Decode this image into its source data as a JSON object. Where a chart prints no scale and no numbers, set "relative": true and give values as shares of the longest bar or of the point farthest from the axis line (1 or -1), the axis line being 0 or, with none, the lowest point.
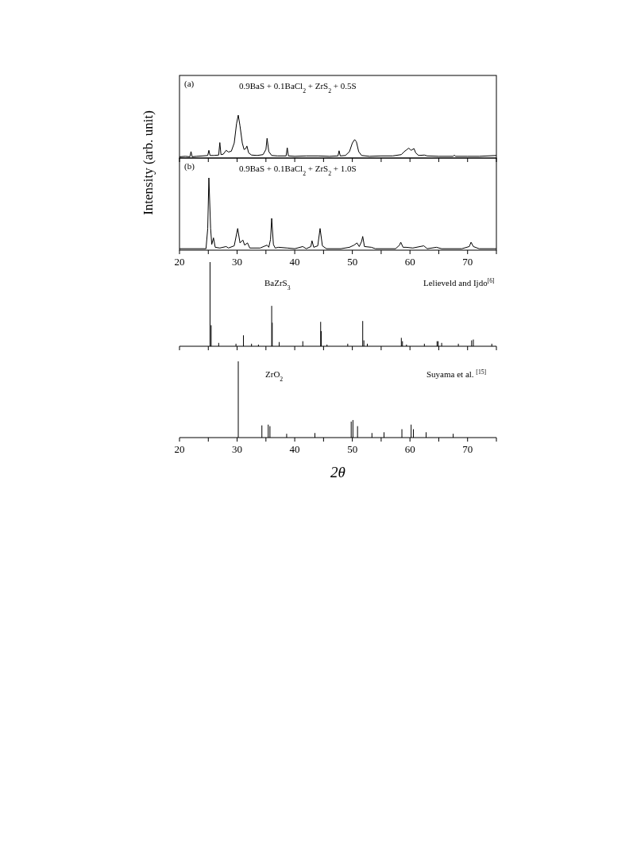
{
  "chart_data": [
    {
      "type": "line",
      "relative": true,
      "color": "#000000",
      "tick_labels": false,
      "ylabel": "Intensity (arb. unit)",
      "annotations": [
        "(a)",
        "0.9BaS + 0.1BaCl$_{2}$ + ZrS$_{2}$ + 0.5S"
      ],
      "xlim": [
        20,
        75
      ],
      "xticks": [
        {
          "value": 20,
          "label": null
        },
        {
          "value": 25,
          "label": null
        },
        {
          "value": 30,
          "label": null
        },
        {
          "value": 35,
          "label": null
        },
        {
          "value": 40,
          "label": null
        },
        {
          "value": 45,
          "label": null
        },
        {
          "value": 50,
          "label": null
        },
        {
          "value": 55,
          "label": null
        },
        {
          "value": 60,
          "label": null
        },
        {
          "value": 65,
          "label": null
        },
        {
          "value": 70,
          "label": null
        },
        {
          "value": 75,
          "label": null
        }
      ],
      "x": [
        20,
        21,
        21.8,
        22.0,
        22.2,
        23,
        24,
        24.9,
        25.1,
        25.3,
        26,
        26.8,
        27.0,
        27.2,
        27.6,
        28.1,
        28.5,
        29.0,
        29.5,
        29.9,
        30.2,
        30.5,
        30.9,
        31.2,
        31.5,
        31.7,
        32.0,
        32.5,
        33.5,
        34.5,
        35.0,
        35.2,
        35.5,
        36,
        37,
        38.5,
        38.7,
        38.9,
        40,
        42,
        44,
        46,
        47.5,
        47.7,
        47.9,
        48.8,
        49.5,
        50.0,
        50.4,
        50.7,
        51.1,
        51.6,
        53,
        55,
        57,
        58.5,
        59.0,
        59.5,
        59.8,
        60.2,
        60.7,
        61.0,
        61.5,
        62.5,
        63,
        65,
        67.5,
        67.7,
        67.9,
        70,
        72,
        75
      ],
      "values": [
        0.03,
        0.04,
        0.03,
        0.15,
        0.03,
        0.04,
        0.05,
        0.06,
        0.18,
        0.06,
        0.06,
        0.07,
        0.36,
        0.08,
        0.09,
        0.18,
        0.14,
        0.16,
        0.35,
        0.8,
        1.0,
        0.75,
        0.35,
        0.2,
        0.22,
        0.28,
        0.12,
        0.07,
        0.06,
        0.08,
        0.2,
        0.46,
        0.15,
        0.06,
        0.05,
        0.05,
        0.24,
        0.05,
        0.04,
        0.05,
        0.05,
        0.04,
        0.05,
        0.17,
        0.05,
        0.06,
        0.15,
        0.35,
        0.43,
        0.38,
        0.15,
        0.06,
        0.04,
        0.05,
        0.05,
        0.08,
        0.15,
        0.2,
        0.23,
        0.18,
        0.22,
        0.12,
        0.06,
        0.07,
        0.05,
        0.04,
        0.04,
        0.07,
        0.04,
        0.04,
        0.04,
        0.06
      ]
    },
    {
      "type": "line",
      "relative": true,
      "color": "#000000",
      "tick_labels": "x",
      "annotations": [
        "(b)",
        "0.9BaS + 0.1BaCl$_{2}$ + ZrS$_{2}$ + 1.0S"
      ],
      "xlim": [
        20,
        75
      ],
      "xticks": [
        20,
        {
          "value": 25,
          "label": null
        },
        30,
        {
          "value": 35,
          "label": null
        },
        40,
        {
          "value": 45,
          "label": null
        },
        50,
        {
          "value": 55,
          "label": null
        },
        60,
        {
          "value": 65,
          "label": null
        },
        70,
        {
          "value": 75,
          "label": null
        }
      ],
      "x": [
        20,
        24.6,
        24.9,
        25.1,
        25.4,
        25.6,
        25.9,
        26.2,
        27,
        28.1,
        28.5,
        29.5,
        30.1,
        30.5,
        31.0,
        31.3,
        31.8,
        32.2,
        34,
        35.2,
        35.5,
        35.8,
        36.0,
        36.3,
        36.6,
        37.2,
        38.7,
        40,
        41.4,
        42,
        42.8,
        43.0,
        43.3,
        44.0,
        44.4,
        44.8,
        45.5,
        48,
        49.5,
        50.3,
        50.8,
        51.2,
        51.6,
        51.8,
        52.1,
        53.3,
        54,
        57.5,
        58.2,
        58.4,
        58.8,
        59.3,
        60.5,
        62.4,
        63,
        64.6,
        65.5,
        69,
        70.3,
        70.6,
        71.0,
        72,
        75
      ],
      "values": [
        0.02,
        0.02,
        0.3,
        1.0,
        0.3,
        0.08,
        0.17,
        0.04,
        0.03,
        0.05,
        0.03,
        0.06,
        0.3,
        0.1,
        0.14,
        0.07,
        0.1,
        0.03,
        0.03,
        0.07,
        0.04,
        0.15,
        0.44,
        0.08,
        0.03,
        0.04,
        0.03,
        0.02,
        0.05,
        0.02,
        0.05,
        0.13,
        0.04,
        0.06,
        0.3,
        0.06,
        0.02,
        0.02,
        0.04,
        0.07,
        0.1,
        0.05,
        0.12,
        0.19,
        0.05,
        0.04,
        0.02,
        0.02,
        0.07,
        0.11,
        0.04,
        0.04,
        0.03,
        0.06,
        0.02,
        0.04,
        0.02,
        0.02,
        0.05,
        0.11,
        0.05,
        0.02,
        0.02
      ]
    },
    {
      "type": "bar",
      "relative": true,
      "color": "#000000",
      "tick_labels": false,
      "annotations": [
        "BaZrS$_{3}$",
        "Lelieveld and Ijdo$^{[6]}$"
      ],
      "xlim": [
        20,
        75
      ],
      "xticks": [
        {
          "value": 20,
          "label": null
        },
        {
          "value": 25,
          "label": null
        },
        {
          "value": 30,
          "label": null
        },
        {
          "value": 35,
          "label": null
        },
        {
          "value": 40,
          "label": null
        },
        {
          "value": 45,
          "label": null
        },
        {
          "value": 50,
          "label": null
        },
        {
          "value": 55,
          "label": null
        },
        {
          "value": 60,
          "label": null
        },
        {
          "value": 65,
          "label": null
        },
        {
          "value": 70,
          "label": null
        },
        {
          "value": 75,
          "label": null
        }
      ],
      "x": [
        25.3,
        25.5,
        26.8,
        29.8,
        31.1,
        32.5,
        33.7,
        36.0,
        36.1,
        37.3,
        41.4,
        44.5,
        44.6,
        45.6,
        49.2,
        51.8,
        52.0,
        52.6,
        58.5,
        58.7,
        59.4,
        62.5,
        64.7,
        64.9,
        65.5,
        68.4,
        70.7,
        71.0,
        74.2
      ],
      "values": [
        1.0,
        0.25,
        0.04,
        0.03,
        0.13,
        0.03,
        0.02,
        0.48,
        0.28,
        0.05,
        0.06,
        0.29,
        0.18,
        0.02,
        0.03,
        0.3,
        0.07,
        0.03,
        0.1,
        0.06,
        0.02,
        0.03,
        0.06,
        0.06,
        0.04,
        0.03,
        0.07,
        0.08,
        0.03
      ]
    },
    {
      "type": "bar",
      "relative": true,
      "color": "#000000",
      "tick_labels": "x",
      "xlabel": "2θ",
      "annotations": [
        "ZrO$_{2}$",
        "Suyama et al. $^{[15]}$"
      ],
      "xlim": [
        20,
        75
      ],
      "xticks": [
        20,
        {
          "value": 25,
          "label": null
        },
        30,
        {
          "value": 35,
          "label": null
        },
        40,
        {
          "value": 45,
          "label": null
        },
        50,
        {
          "value": 55,
          "label": null
        },
        60,
        {
          "value": 65,
          "label": null
        },
        70,
        {
          "value": 75,
          "label": null
        }
      ],
      "x": [
        30.2,
        34.3,
        35.4,
        35.7,
        38.6,
        43.5,
        49.8,
        50.1,
        50.9,
        53.4,
        55.5,
        58.6,
        60.2,
        60.6,
        62.8,
        67.5
      ],
      "values": [
        1.0,
        0.16,
        0.17,
        0.15,
        0.05,
        0.06,
        0.21,
        0.23,
        0.15,
        0.06,
        0.07,
        0.11,
        0.17,
        0.11,
        0.07,
        0.05
      ]
    }
  ]
}
